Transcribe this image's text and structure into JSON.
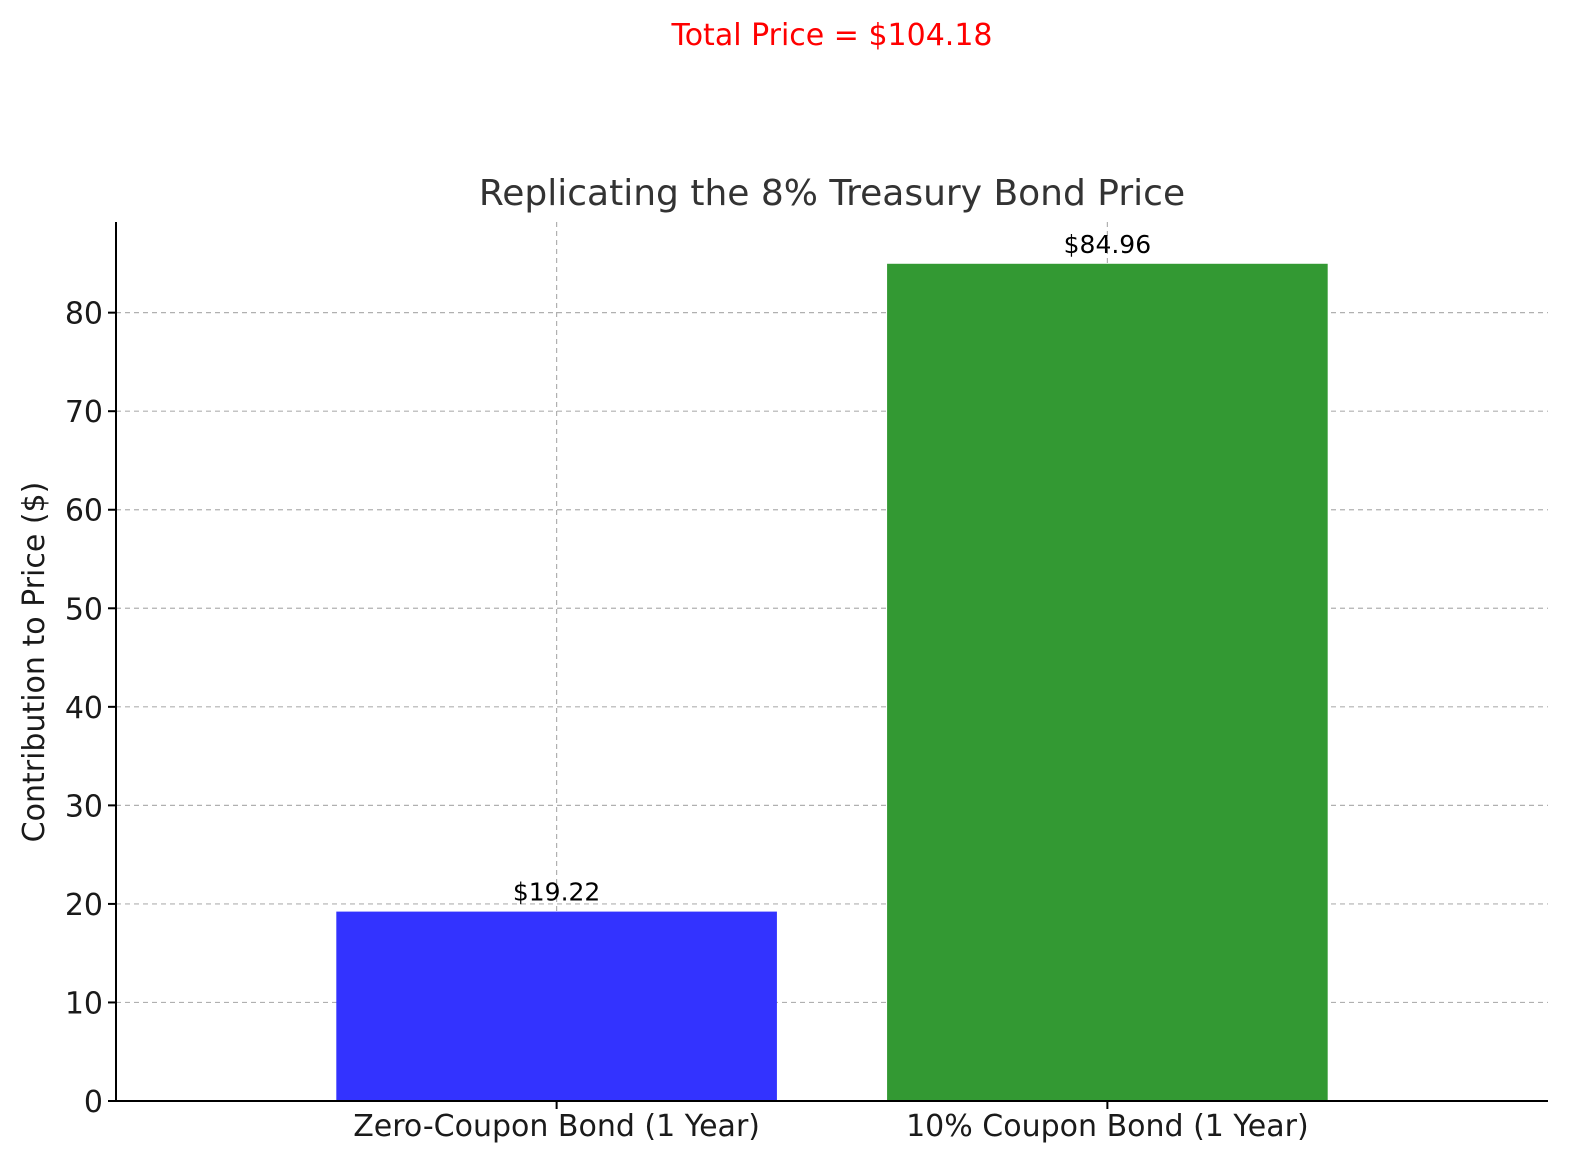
{
  "chart_data": {
    "type": "bar",
    "title": "Replicating the 8% Treasury Bond Price",
    "annotation": {
      "text": "Total Price = $104.18",
      "color": "#ff0000"
    },
    "xlabel": "",
    "ylabel": "Contribution to Price ($)",
    "categories": [
      "Zero-Coupon Bond (1 Year)",
      "10% Coupon Bond (1 Year)"
    ],
    "values": [
      19.22,
      84.96
    ],
    "data_labels": [
      "$19.22",
      "$84.96"
    ],
    "bar_colors": [
      "#3333ff",
      "#339933"
    ],
    "ylim": [
      0,
      89.2
    ],
    "yticks": [
      0,
      10,
      20,
      30,
      40,
      50,
      60,
      70,
      80
    ],
    "grid": true
  }
}
